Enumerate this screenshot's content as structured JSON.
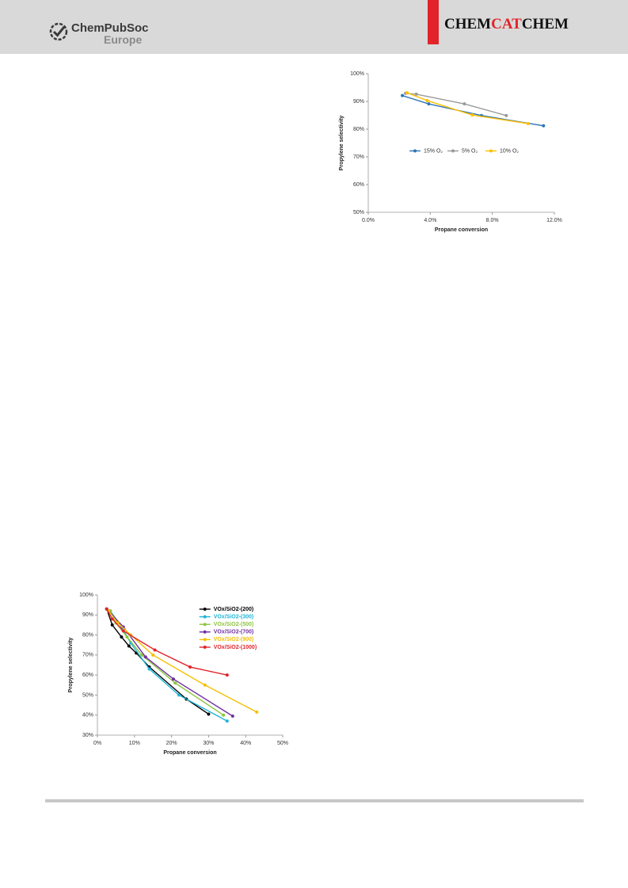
{
  "header": {
    "logo_text": "ChemPubSoc",
    "logo_subtext": "Europe",
    "journal": {
      "part1": "CHEM",
      "part2": "CAT",
      "part3": "CHEM"
    }
  },
  "chart_data": [
    {
      "type": "line",
      "xlabel": "Propane conversion",
      "ylabel": "Propylene selectivity",
      "xlim": [
        0,
        12
      ],
      "xticks": [
        {
          "value": 0,
          "label": "0.0%"
        },
        {
          "value": 4,
          "label": "4.0%"
        },
        {
          "value": 8,
          "label": "8.0%"
        },
        {
          "value": 12,
          "label": "12.0%"
        }
      ],
      "ylim": [
        50,
        100
      ],
      "yticks": [
        {
          "value": 50,
          "label": "50%"
        },
        {
          "value": 60,
          "label": "60%"
        },
        {
          "value": 70,
          "label": "70%"
        },
        {
          "value": 80,
          "label": "80%"
        },
        {
          "value": 90,
          "label": "90%"
        },
        {
          "value": 100,
          "label": "100%"
        }
      ],
      "legend": "center",
      "grid": false,
      "series": [
        {
          "name": "15% O₂",
          "color": "#2e75b6",
          "x": [
            2.2,
            3.9,
            7.3,
            11.3
          ],
          "values": [
            92.1,
            89.1,
            84.9,
            81.2
          ]
        },
        {
          "name": "5% O₂",
          "color": "#9a9a9a",
          "x": [
            2.4,
            3.1,
            6.2,
            8.9
          ],
          "values": [
            92.9,
            92.6,
            89.1,
            84.9
          ]
        },
        {
          "name": "10% O₂",
          "color": "#ffc000",
          "x": [
            2.5,
            3.8,
            6.7,
            10.3
          ],
          "values": [
            93.1,
            90.3,
            85.1,
            82.0
          ]
        }
      ]
    },
    {
      "type": "line",
      "xlabel": "Propane conversion",
      "ylabel": "Propylene selectivity",
      "xlim": [
        0,
        50
      ],
      "xticks": [
        {
          "value": 0,
          "label": "0%"
        },
        {
          "value": 10,
          "label": "10%"
        },
        {
          "value": 20,
          "label": "20%"
        },
        {
          "value": 30,
          "label": "30%"
        },
        {
          "value": 40,
          "label": "40%"
        },
        {
          "value": 50,
          "label": "50%"
        }
      ],
      "ylim": [
        30,
        100
      ],
      "yticks": [
        {
          "value": 30,
          "label": "30%"
        },
        {
          "value": 40,
          "label": "40%"
        },
        {
          "value": 50,
          "label": "50%"
        },
        {
          "value": 60,
          "label": "60%"
        },
        {
          "value": 70,
          "label": "70%"
        },
        {
          "value": 80,
          "label": "80%"
        },
        {
          "value": 90,
          "label": "90%"
        },
        {
          "value": 100,
          "label": "100%"
        }
      ],
      "legend": "upper right",
      "grid": false,
      "series": [
        {
          "name": "VOx/SiO2-(200)",
          "color": "#000000",
          "x": [
            2.5,
            4,
            6.5,
            8.5,
            10.5,
            14,
            24,
            30
          ],
          "values": [
            93,
            85,
            79,
            74.5,
            71,
            64,
            48,
            40.5
          ]
        },
        {
          "name": "VOx/SiO2-(300)",
          "color": "#1fb5d6",
          "x": [
            3.5,
            6.5,
            9,
            14,
            22,
            35
          ],
          "values": [
            92,
            84,
            76,
            63,
            50,
            37
          ]
        },
        {
          "name": "VOx/SiO2-(500)",
          "color": "#8cc63f",
          "x": [
            3.5,
            5,
            8,
            12,
            21,
            34
          ],
          "values": [
            92,
            86,
            79,
            70,
            56,
            40
          ]
        },
        {
          "name": "VOx/SiO2-(700)",
          "color": "#7030a0",
          "x": [
            3,
            7,
            13,
            20.5,
            36.5
          ],
          "values": [
            92,
            84,
            69,
            58,
            39.5
          ]
        },
        {
          "name": "VOx/SiO2-(900)",
          "color": "#f5c000",
          "x": [
            3,
            5.5,
            9,
            15,
            29,
            43
          ],
          "values": [
            92,
            86,
            80,
            70,
            55,
            41.5
          ]
        },
        {
          "name": "VOx/SiO2-(1000)",
          "color": "#e2232a",
          "x": [
            2.5,
            4,
            7,
            15.5,
            25,
            35
          ],
          "values": [
            93,
            88,
            82,
            72.5,
            64,
            60
          ]
        }
      ]
    }
  ]
}
